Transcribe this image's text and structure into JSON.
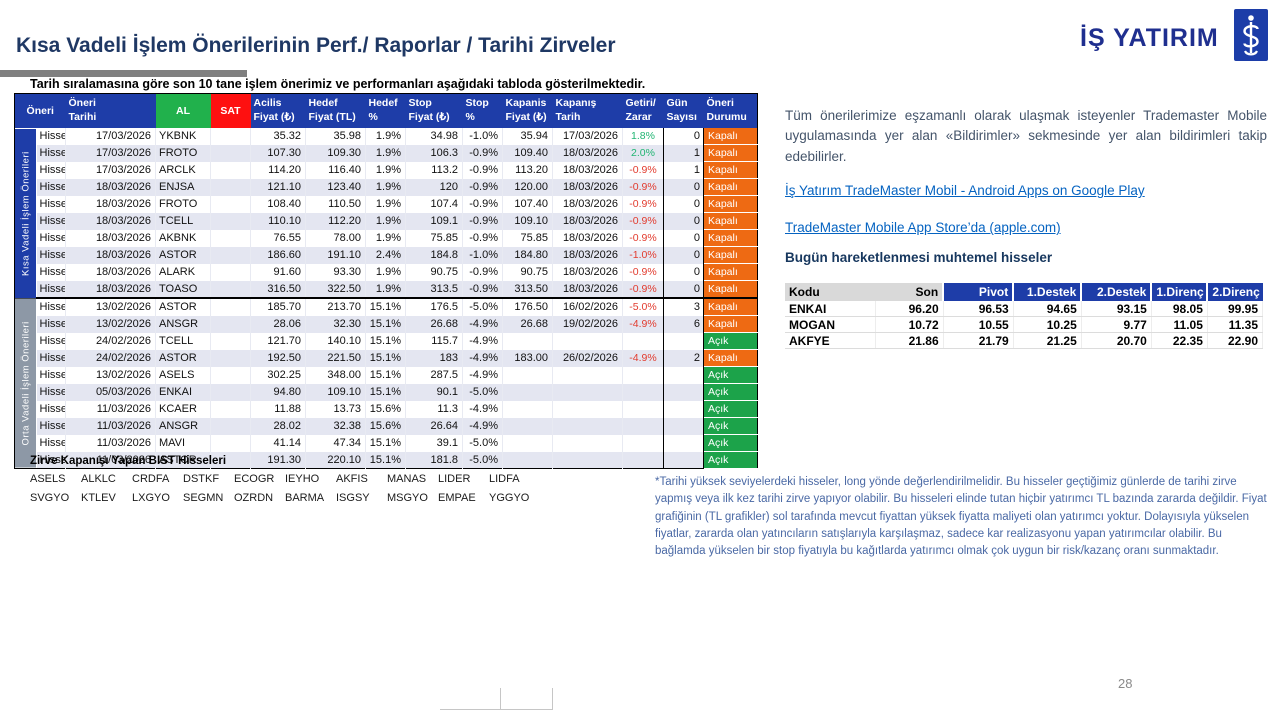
{
  "header": {
    "title": "Kısa Vadeli İşlem Önerilerinin Perf./ Raporlar / Tarihi Zirveler",
    "subtitle": "Tarih sıralamasına göre son 10 tane işlem önerimiz ve performanları aşağıdaki tabloda gösterilmektedir.",
    "logo_text": "İŞ YATIRIM"
  },
  "table": {
    "row_label": "Hisse",
    "section_labels": {
      "kisa": "Kısa Vadeli İşlem Önerileri",
      "orta": "Orta Vadeli İşlem Önerileri"
    },
    "columns": [
      {
        "l1": "Öneri",
        "l2": ""
      },
      {
        "l1": "Öneri",
        "l2": "Tarihi"
      },
      {
        "l1": "AL",
        "l2": ""
      },
      {
        "l1": "SAT",
        "l2": ""
      },
      {
        "l1": "Acilis",
        "l2": "Fiyat (₺)"
      },
      {
        "l1": "Hedef",
        "l2": "Fiyat (TL)"
      },
      {
        "l1": "Hedef",
        "l2": "%"
      },
      {
        "l1": "Stop",
        "l2": "Fiyat (₺)"
      },
      {
        "l1": "Stop",
        "l2": "%"
      },
      {
        "l1": "Kapanis",
        "l2": "Fiyat (₺)"
      },
      {
        "l1": "Kapanış",
        "l2": "Tarih"
      },
      {
        "l1": "Getiri/",
        "l2": "Zarar"
      },
      {
        "l1": "Gün",
        "l2": "Sayısı"
      },
      {
        "l1": "Öneri",
        "l2": "Durumu"
      }
    ],
    "rows": [
      {
        "section": "kisa",
        "date": "17/03/2026",
        "ticker": "YKBNK",
        "open": "35.32",
        "target": "35.98",
        "targetPct": "1.9%",
        "stop": "34.98",
        "stopPct": "-1.0%",
        "close": "35.94",
        "closeDate": "17/03/2026",
        "ret": "1.8%",
        "retSign": "pos",
        "days": "0",
        "status": "Kapalı"
      },
      {
        "section": "kisa",
        "date": "17/03/2026",
        "ticker": "FROTO",
        "open": "107.30",
        "target": "109.30",
        "targetPct": "1.9%",
        "stop": "106.3",
        "stopPct": "-0.9%",
        "close": "109.40",
        "closeDate": "18/03/2026",
        "ret": "2.0%",
        "retSign": "pos",
        "days": "1",
        "status": "Kapalı"
      },
      {
        "section": "kisa",
        "date": "17/03/2026",
        "ticker": "ARCLK",
        "open": "114.20",
        "target": "116.40",
        "targetPct": "1.9%",
        "stop": "113.2",
        "stopPct": "-0.9%",
        "close": "113.20",
        "closeDate": "18/03/2026",
        "ret": "-0.9%",
        "retSign": "neg",
        "days": "1",
        "status": "Kapalı"
      },
      {
        "section": "kisa",
        "date": "18/03/2026",
        "ticker": "ENJSA",
        "open": "121.10",
        "target": "123.40",
        "targetPct": "1.9%",
        "stop": "120",
        "stopPct": "-0.9%",
        "close": "120.00",
        "closeDate": "18/03/2026",
        "ret": "-0.9%",
        "retSign": "neg",
        "days": "0",
        "status": "Kapalı"
      },
      {
        "section": "kisa",
        "date": "18/03/2026",
        "ticker": "FROTO",
        "open": "108.40",
        "target": "110.50",
        "targetPct": "1.9%",
        "stop": "107.4",
        "stopPct": "-0.9%",
        "close": "107.40",
        "closeDate": "18/03/2026",
        "ret": "-0.9%",
        "retSign": "neg",
        "days": "0",
        "status": "Kapalı"
      },
      {
        "section": "kisa",
        "date": "18/03/2026",
        "ticker": "TCELL",
        "open": "110.10",
        "target": "112.20",
        "targetPct": "1.9%",
        "stop": "109.1",
        "stopPct": "-0.9%",
        "close": "109.10",
        "closeDate": "18/03/2026",
        "ret": "-0.9%",
        "retSign": "neg",
        "days": "0",
        "status": "Kapalı"
      },
      {
        "section": "kisa",
        "date": "18/03/2026",
        "ticker": "AKBNK",
        "open": "76.55",
        "target": "78.00",
        "targetPct": "1.9%",
        "stop": "75.85",
        "stopPct": "-0.9%",
        "close": "75.85",
        "closeDate": "18/03/2026",
        "ret": "-0.9%",
        "retSign": "neg",
        "days": "0",
        "status": "Kapalı"
      },
      {
        "section": "kisa",
        "date": "18/03/2026",
        "ticker": "ASTOR",
        "open": "186.60",
        "target": "191.10",
        "targetPct": "2.4%",
        "stop": "184.8",
        "stopPct": "-1.0%",
        "close": "184.80",
        "closeDate": "18/03/2026",
        "ret": "-1.0%",
        "retSign": "neg",
        "days": "0",
        "status": "Kapalı"
      },
      {
        "section": "kisa",
        "date": "18/03/2026",
        "ticker": "ALARK",
        "open": "91.60",
        "target": "93.30",
        "targetPct": "1.9%",
        "stop": "90.75",
        "stopPct": "-0.9%",
        "close": "90.75",
        "closeDate": "18/03/2026",
        "ret": "-0.9%",
        "retSign": "neg",
        "days": "0",
        "status": "Kapalı"
      },
      {
        "section": "kisa",
        "date": "18/03/2026",
        "ticker": "TOASO",
        "open": "316.50",
        "target": "322.50",
        "targetPct": "1.9%",
        "stop": "313.5",
        "stopPct": "-0.9%",
        "close": "313.50",
        "closeDate": "18/03/2026",
        "ret": "-0.9%",
        "retSign": "neg",
        "days": "0",
        "status": "Kapalı"
      },
      {
        "section": "orta",
        "date": "13/02/2026",
        "ticker": "ASTOR",
        "open": "185.70",
        "target": "213.70",
        "targetPct": "15.1%",
        "stop": "176.5",
        "stopPct": "-5.0%",
        "close": "176.50",
        "closeDate": "16/02/2026",
        "ret": "-5.0%",
        "retSign": "neg",
        "days": "3",
        "status": "Kapalı"
      },
      {
        "section": "orta",
        "date": "13/02/2026",
        "ticker": "ANSGR",
        "open": "28.06",
        "target": "32.30",
        "targetPct": "15.1%",
        "stop": "26.68",
        "stopPct": "-4.9%",
        "close": "26.68",
        "closeDate": "19/02/2026",
        "ret": "-4.9%",
        "retSign": "neg",
        "days": "6",
        "status": "Kapalı"
      },
      {
        "section": "orta",
        "date": "24/02/2026",
        "ticker": "TCELL",
        "open": "121.70",
        "target": "140.10",
        "targetPct": "15.1%",
        "stop": "115.7",
        "stopPct": "-4.9%",
        "close": "",
        "closeDate": "",
        "ret": "",
        "retSign": "",
        "days": "",
        "status": "Açık"
      },
      {
        "section": "orta",
        "date": "24/02/2026",
        "ticker": "ASTOR",
        "open": "192.50",
        "target": "221.50",
        "targetPct": "15.1%",
        "stop": "183",
        "stopPct": "-4.9%",
        "close": "183.00",
        "closeDate": "26/02/2026",
        "ret": "-4.9%",
        "retSign": "neg",
        "days": "2",
        "status": "Kapalı"
      },
      {
        "section": "orta",
        "date": "13/02/2026",
        "ticker": "ASELS",
        "open": "302.25",
        "target": "348.00",
        "targetPct": "15.1%",
        "stop": "287.5",
        "stopPct": "-4.9%",
        "close": "",
        "closeDate": "",
        "ret": "",
        "retSign": "",
        "days": "",
        "status": "Açık"
      },
      {
        "section": "orta",
        "date": "05/03/2026",
        "ticker": "ENKAI",
        "open": "94.80",
        "target": "109.10",
        "targetPct": "15.1%",
        "stop": "90.1",
        "stopPct": "-5.0%",
        "close": "",
        "closeDate": "",
        "ret": "",
        "retSign": "",
        "days": "",
        "status": "Açık"
      },
      {
        "section": "orta",
        "date": "11/03/2026",
        "ticker": "KCAER",
        "open": "11.88",
        "target": "13.73",
        "targetPct": "15.6%",
        "stop": "11.3",
        "stopPct": "-4.9%",
        "close": "",
        "closeDate": "",
        "ret": "",
        "retSign": "",
        "days": "",
        "status": "Açık"
      },
      {
        "section": "orta",
        "date": "11/03/2026",
        "ticker": "ANSGR",
        "open": "28.02",
        "target": "32.38",
        "targetPct": "15.6%",
        "stop": "26.64",
        "stopPct": "-4.9%",
        "close": "",
        "closeDate": "",
        "ret": "",
        "retSign": "",
        "days": "",
        "status": "Açık"
      },
      {
        "section": "orta",
        "date": "11/03/2026",
        "ticker": "MAVI",
        "open": "41.14",
        "target": "47.34",
        "targetPct": "15.1%",
        "stop": "39.1",
        "stopPct": "-5.0%",
        "close": "",
        "closeDate": "",
        "ret": "",
        "retSign": "",
        "days": "",
        "status": "Açık"
      },
      {
        "section": "orta",
        "date": "11/03/2026",
        "ticker": "ASTOR",
        "open": "191.30",
        "target": "220.10",
        "targetPct": "15.1%",
        "stop": "181.8",
        "stopPct": "-5.0%",
        "close": "",
        "closeDate": "",
        "ret": "",
        "retSign": "",
        "days": "",
        "status": "Açık"
      }
    ]
  },
  "zirve": {
    "title": "Zirve Kapanışı Yapan BIST Hisseleri",
    "rows": [
      [
        "ASELS",
        "ALKLC",
        "CRDFA",
        "DSTKF",
        "ECOGR",
        "IEYHO",
        "AKFIS",
        "MANAS",
        "LIDER",
        "LIDFA"
      ],
      [
        "SVGYO",
        "KTLEV",
        "LXGYO",
        "SEGMN",
        "OZRDN",
        "BARMA",
        "ISGSY",
        "MSGYO",
        "EMPAE",
        "YGGYO"
      ]
    ]
  },
  "right_panel": {
    "paragraph": "Tüm önerilerimize eşzamanlı olarak ulaşmak isteyenler Trademaster Mobile uygulamasında yer alan «Bildirimler» sekmesinde yer alan bildirimleri takip edebilirler.",
    "link_android": "İş Yatırım TradeMaster Mobil - Android Apps on Google Play",
    "link_ios": "TradeMaster Mobile App Store’da (apple.com)",
    "movers_title": "Bugün hareketlenmesi muhtemel hisseler",
    "movers": {
      "headers": [
        "Kodu",
        "Son",
        "Pivot",
        "1.Destek",
        "2.Destek",
        "1.Direnç",
        "2.Direnç"
      ],
      "rows": [
        [
          "ENKAI",
          "96.20",
          "96.53",
          "94.65",
          "93.15",
          "98.05",
          "99.95"
        ],
        [
          "MOGAN",
          "10.72",
          "10.55",
          "10.25",
          "9.77",
          "11.05",
          "11.35"
        ],
        [
          "AKFYE",
          "21.86",
          "21.79",
          "21.25",
          "20.70",
          "22.35",
          "22.90"
        ]
      ]
    },
    "footnote": "*Tarihi yüksek seviyelerdeki hisseler, long yönde değerlendirilmelidir. Bu hisseler geçtiğimiz günlerde de tarihi zirve yapmış veya ilk kez tarihi zirve yapıyor olabilir. Bu hisseleri elinde tutan hiçbir yatırımcı TL bazında zararda değildir. Fiyat grafiğinin (TL grafikler) sol tarafında mevcut fiyattan yüksek fiyatta maliyeti olan yatırımcı yoktur. Dolayısıyla yükselen fiyatlar, zararda olan yatıncıların satışlarıyla karşılaşmaz, sadece kar realizasyonu yapan yatırımcılar olabilir. Bu bağlamda yükselen bir stop fiyatıyla bu kağıtlarda yatırımcı olmak çok uygun bir risk/kazanç oranı sunmaktadır."
  },
  "page_number": "28",
  "colors": {
    "header_blue": "#1E3DA8",
    "al_green": "#21B14C",
    "sat_red": "#FE1010",
    "kapali_orange": "#EE6A13",
    "acik_green": "#1CA34A",
    "return_positive": "#21B573",
    "return_negative": "#E23B2E",
    "stripe": "#E4E6F1",
    "orta_gray": "#8D98A6",
    "link_blue": "#0563C1",
    "title_navy": "#1F3864"
  }
}
